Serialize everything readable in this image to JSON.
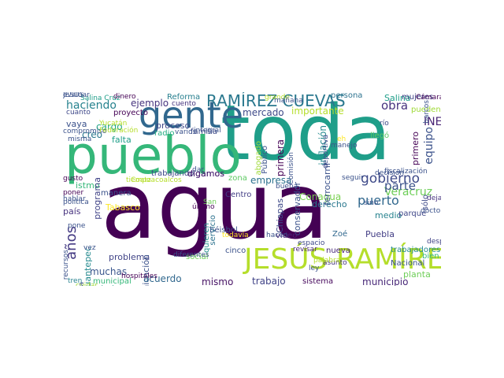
{
  "cloud": {
    "words": [
      {
        "text": "agua",
        "color": "#440154"
      },
      {
        "text": "toda",
        "color": "#1f9e89"
      },
      {
        "text": "pueblo",
        "color": "#35b779"
      },
      {
        "text": "gente",
        "color": "#31688e"
      },
      {
        "text": "JESÚS RAMÍREZ",
        "color": "#b5de2b"
      },
      {
        "text": "RAMÍREZ CUEVAS",
        "color": "#2a788e"
      },
      {
        "text": "haciendo",
        "color": "#26828e"
      },
      {
        "text": "ejemplo",
        "color": "#46337e"
      },
      {
        "text": "años",
        "color": "#443a83"
      },
      {
        "text": "gobierno",
        "color": "#3e4a89"
      },
      {
        "text": "obra",
        "color": "#46327e"
      },
      {
        "text": "Veracruz",
        "color": "#6ece58"
      },
      {
        "text": "puerto",
        "color": "#31688e"
      },
      {
        "text": "parte",
        "color": "#3b528b"
      },
      {
        "text": "INE",
        "color": "#482475"
      },
      {
        "text": "equipo",
        "color": "#3b528b"
      },
      {
        "text": "Salina",
        "color": "#1f9e89"
      },
      {
        "text": "mujeres",
        "color": "#404387"
      },
      {
        "text": "pueden",
        "color": "#a0da39"
      },
      {
        "text": "mercado",
        "color": "#3e4a89"
      },
      {
        "text": "importante",
        "color": "#b5de2b"
      },
      {
        "text": "Reforma",
        "color": "#277f8e"
      },
      {
        "text": "persona",
        "color": "#2c728e"
      },
      {
        "text": "cuanto",
        "color": "#3f4889"
      },
      {
        "text": "proyecto",
        "color": "#440154"
      },
      {
        "text": "cargo",
        "color": "#22a785"
      },
      {
        "text": "vaya",
        "color": "#3b528b"
      },
      {
        "text": "creo",
        "color": "#2a788e"
      },
      {
        "text": "falta",
        "color": "#1f9e89"
      },
      {
        "text": "radio",
        "color": "#25ac82"
      },
      {
        "text": "familia",
        "color": "#3e4a89"
      },
      {
        "text": "proceso",
        "color": "#3f4788"
      },
      {
        "text": "cuento",
        "color": "#46337e"
      },
      {
        "text": "trabajando",
        "color": "#3e4989"
      },
      {
        "text": "digamos",
        "color": "#481f70"
      },
      {
        "text": "manera",
        "color": "#3b528b"
      },
      {
        "text": "empresa",
        "color": "#2c728e"
      },
      {
        "text": "zona",
        "color": "#5ec962"
      },
      {
        "text": "Conagua",
        "color": "#7ad151"
      },
      {
        "text": "istmo",
        "color": "#35b779"
      },
      {
        "text": "poner",
        "color": "#440154"
      },
      {
        "text": "digamos",
        "color": "#481f70"
      },
      {
        "text": "país",
        "color": "#46327e"
      },
      {
        "text": "Tabasco",
        "color": "#fde725"
      },
      {
        "text": "programa",
        "color": "#404387"
      },
      {
        "text": "muchas",
        "color": "#39558c"
      },
      {
        "text": "problema",
        "color": "#414487"
      },
      {
        "text": "comunicación",
        "color": "#3b528b"
      },
      {
        "text": "colonia",
        "color": "#1fa088"
      },
      {
        "text": "mejor",
        "color": "#3b528b"
      },
      {
        "text": "acuerdo",
        "color": "#31688e"
      },
      {
        "text": "mismo",
        "color": "#471365"
      },
      {
        "text": "trabajo",
        "color": "#404387"
      },
      {
        "text": "sistema",
        "color": "#46085c"
      },
      {
        "text": "municipio",
        "color": "#482878"
      },
      {
        "text": "planta",
        "color": "#6ece58"
      },
      {
        "text": "municipal",
        "color": "#35b779"
      },
      {
        "text": "tren",
        "color": "#26828e"
      },
      {
        "text": "béisbol",
        "color": "#3b528b"
      },
      {
        "text": "derecho",
        "color": "#2a788e"
      },
      {
        "text": "Puebla",
        "color": "#433e85"
      },
      {
        "text": "trabajadores",
        "color": "#23898e"
      },
      {
        "text": "Nacional",
        "color": "#3b528b"
      },
      {
        "text": "bien",
        "color": "#35b779"
      },
      {
        "text": "después",
        "color": "#414487"
      },
      {
        "text": "medio",
        "color": "#26828e"
      },
      {
        "text": "parque",
        "color": "#3f4788"
      },
      {
        "text": "dejar",
        "color": "#46337e"
      },
      {
        "text": "Zoé",
        "color": "#31688e"
      },
      {
        "text": "nueva",
        "color": "#482878"
      },
      {
        "text": "asunto",
        "color": "#463480"
      },
      {
        "text": "ley",
        "color": "#3b528b"
      },
      {
        "text": "cinco",
        "color": "#3b528b"
      },
      {
        "text": "social",
        "color": "#6ece58"
      },
      {
        "text": "San",
        "color": "#6ece58"
      },
      {
        "text": "Centro",
        "color": "#433e85"
      },
      {
        "text": "inflación",
        "color": "#23898e"
      },
      {
        "text": "conservador",
        "color": "#3b528b"
      },
      {
        "text": "primero",
        "color": "#440154"
      },
      {
        "text": "ferrocarril",
        "color": "#3b528b"
      },
      {
        "text": "llegó",
        "color": "#5ec962"
      },
      {
        "text": "río",
        "color": "#3e4a89"
      },
      {
        "text": "Chiapas",
        "color": "#3e4a89"
      },
      {
        "text": "sólo",
        "color": "#3e4a89"
      },
      {
        "text": "Tehuantepec",
        "color": "#23898e"
      },
      {
        "text": "vivienda",
        "color": "#3b528b"
      },
      {
        "text": "servicio",
        "color": "#2c728e"
      },
      {
        "text": "quieren",
        "color": "#21918c"
      },
      {
        "text": "primera",
        "color": "#440154"
      },
      {
        "text": "Público",
        "color": "#3b528b"
      },
      {
        "text": "abogado",
        "color": "#a0da39"
      },
      {
        "text": "deportiva",
        "color": "#3e4a89"
      },
      {
        "text": "video",
        "color": "#482475"
      },
      {
        "text": "revisar",
        "color": "#482475"
      },
      {
        "text": "espacio",
        "color": "#3f4889"
      },
      {
        "text": "Salina Cruz",
        "color": "#1f9e89"
      },
      {
        "text": "dinero",
        "color": "#440154"
      },
      {
        "text": "recursos",
        "color": "#3b528b"
      },
      {
        "text": "cuidar",
        "color": "#a0da39"
      },
      {
        "text": "hospitales",
        "color": "#440154"
      },
      {
        "text": "Coatzacoalcos",
        "color": "#b5de2b"
      },
      {
        "text": "hablar",
        "color": "#3b528b"
      },
      {
        "text": "gusto",
        "color": "#440154"
      },
      {
        "text": "pone",
        "color": "#3b528b"
      },
      {
        "text": "tiempo",
        "color": "#b5de2b"
      },
      {
        "text": "política",
        "color": "#3b528b"
      },
      {
        "text": "vez",
        "color": "#3b528b"
      },
      {
        "text": "varios",
        "color": "#3b528b"
      },
      {
        "text": "integral",
        "color": "#3b528b"
      },
      {
        "text": "dar",
        "color": "#3b528b"
      },
      {
        "text": "último",
        "color": "#440154"
      },
      {
        "text": "todavía",
        "color": "#fde725"
      },
      {
        "text": "hacen",
        "color": "#3b528b"
      },
      {
        "text": "eh",
        "color": "#fde725"
      },
      {
        "text": "manejo",
        "color": "#3b528b"
      },
      {
        "text": "buena",
        "color": "#3b528b"
      },
      {
        "text": "grande",
        "color": "#b5de2b"
      },
      {
        "text": "mañana",
        "color": "#3b528b"
      },
      {
        "text": "Comisión",
        "color": "#3b528b"
      },
      {
        "text": "decisión",
        "color": "#3b528b"
      },
      {
        "text": "fiscalización",
        "color": "#3b528b"
      },
      {
        "text": "doctor",
        "color": "#3b528b"
      },
      {
        "text": "seguir",
        "color": "#3b528b"
      },
      {
        "text": "Cámara",
        "color": "#440154"
      },
      {
        "text": "barcos",
        "color": "#3b528b"
      },
      {
        "text": "palabra",
        "color": "#b5de2b"
      },
      {
        "text": "compromiso",
        "color": "#3b528b"
      },
      {
        "text": "misma",
        "color": "#3b528b"
      },
      {
        "text": "sino",
        "color": "#3b528b"
      },
      {
        "text": "diferentes",
        "color": "#3b528b"
      },
      {
        "text": "Federación",
        "color": "#b5de2b"
      },
      {
        "text": "Yucatán",
        "color": "#b5de2b"
      },
      {
        "text": "evaluar",
        "color": "#3b528b"
      },
      {
        "text": "JESÚS",
        "color": "#3b528b"
      }
    ]
  }
}
